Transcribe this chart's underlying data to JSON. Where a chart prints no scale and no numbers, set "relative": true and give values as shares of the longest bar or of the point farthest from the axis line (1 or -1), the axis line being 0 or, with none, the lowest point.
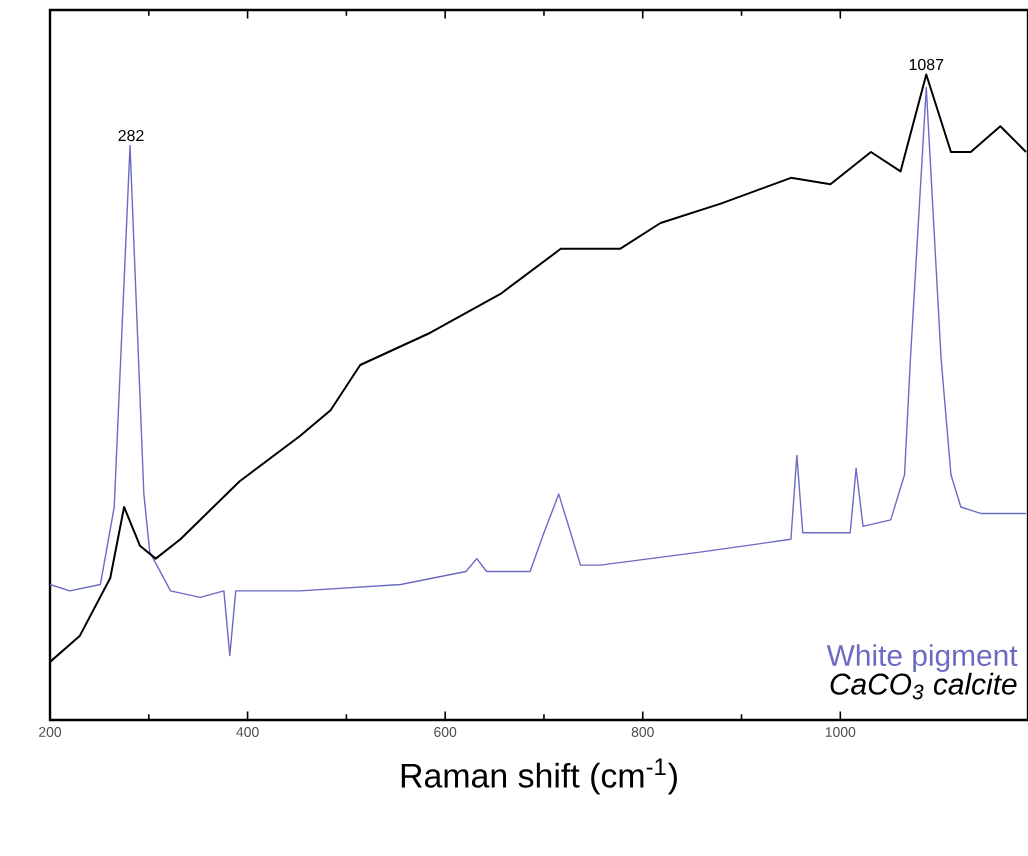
{
  "chart_data": {
    "type": "line",
    "xlabel": "Raman shift (cm$^{-1}$)",
    "relative": true,
    "xlim": [
      200,
      1190
    ],
    "xticks": [
      200,
      400,
      600,
      800,
      1000
    ],
    "legend": "bottom right",
    "grid": false,
    "marker": "none",
    "line_style": "solid",
    "annotations": [
      {
        "text": "282",
        "x": 282,
        "y": 0.89
      },
      {
        "text": "1087",
        "x": 1087,
        "y": 1.0
      }
    ],
    "series": [
      {
        "name": "White pigment",
        "color": "#6b6bc4",
        "x": [
          200,
          220,
          251,
          265,
          281,
          295,
          301,
          322,
          352,
          376,
          382,
          388,
          453,
          555,
          621,
          632,
          642,
          686,
          700,
          715,
          727,
          737,
          757,
          858,
          950,
          956,
          962,
          1010,
          1016,
          1023,
          1051,
          1065,
          1071,
          1087,
          1102,
          1112,
          1122,
          1142,
          1188
        ],
        "values": [
          0.21,
          0.2,
          0.21,
          0.33,
          0.89,
          0.35,
          0.26,
          0.2,
          0.19,
          0.2,
          0.1,
          0.2,
          0.2,
          0.21,
          0.23,
          0.25,
          0.23,
          0.23,
          0.29,
          0.35,
          0.29,
          0.24,
          0.24,
          0.26,
          0.28,
          0.41,
          0.29,
          0.29,
          0.39,
          0.3,
          0.31,
          0.38,
          0.56,
          0.98,
          0.56,
          0.38,
          0.33,
          0.32,
          0.32
        ]
      },
      {
        "name": "CaCO$_{3}$ calcite",
        "color": "#000000",
        "x": [
          200,
          230,
          261,
          275,
          291,
          307,
          332,
          392,
          453,
          484,
          514,
          585,
          656,
          717,
          777,
          818,
          879,
          950,
          990,
          1031,
          1061,
          1087,
          1112,
          1132,
          1162,
          1188
        ],
        "values": [
          0.09,
          0.13,
          0.22,
          0.33,
          0.27,
          0.25,
          0.28,
          0.37,
          0.44,
          0.48,
          0.55,
          0.6,
          0.66,
          0.73,
          0.73,
          0.77,
          0.8,
          0.84,
          0.83,
          0.88,
          0.85,
          1.0,
          0.88,
          0.88,
          0.92,
          0.88
        ]
      }
    ]
  }
}
